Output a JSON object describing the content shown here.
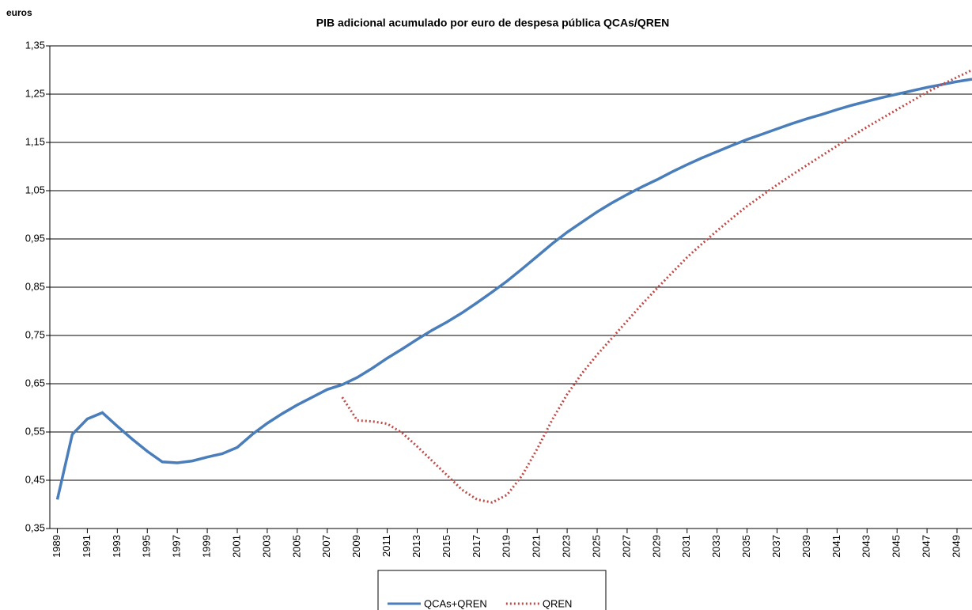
{
  "chart_data": {
    "type": "line",
    "title": "PIB adicional acumulado por euro de despesa pública QCAs/QREN",
    "ylabel": "euros",
    "x": [
      1989,
      1990,
      1991,
      1992,
      1993,
      1994,
      1995,
      1996,
      1997,
      1998,
      1999,
      2000,
      2001,
      2002,
      2003,
      2004,
      2005,
      2006,
      2007,
      2008,
      2009,
      2010,
      2011,
      2012,
      2013,
      2014,
      2015,
      2016,
      2017,
      2018,
      2019,
      2020,
      2021,
      2022,
      2023,
      2024,
      2025,
      2026,
      2027,
      2028,
      2029,
      2030,
      2031,
      2032,
      2033,
      2034,
      2035,
      2036,
      2037,
      2038,
      2039,
      2040,
      2041,
      2042,
      2043,
      2044,
      2045,
      2046,
      2047,
      2048,
      2049,
      2050
    ],
    "xlim": [
      1988.5,
      2050
    ],
    "xticks": [
      1989,
      1991,
      1993,
      1995,
      1997,
      1999,
      2001,
      2003,
      2005,
      2007,
      2009,
      2011,
      2013,
      2015,
      2017,
      2019,
      2021,
      2023,
      2025,
      2027,
      2029,
      2031,
      2033,
      2035,
      2037,
      2039,
      2041,
      2043,
      2045,
      2047,
      2049
    ],
    "ylim": [
      0.35,
      1.35
    ],
    "yticks": [
      {
        "value": 0.35,
        "label": "0,35"
      },
      {
        "value": 0.45,
        "label": "0,45"
      },
      {
        "value": 0.55,
        "label": "0,55"
      },
      {
        "value": 0.65,
        "label": "0,65"
      },
      {
        "value": 0.75,
        "label": "0,75"
      },
      {
        "value": 0.85,
        "label": "0,85"
      },
      {
        "value": 0.95,
        "label": "0,95"
      },
      {
        "value": 1.05,
        "label": "1,05"
      },
      {
        "value": 1.15,
        "label": "1,15"
      },
      {
        "value": 1.25,
        "label": "1,25"
      },
      {
        "value": 1.35,
        "label": "1,35"
      }
    ],
    "grid": true,
    "legend": "bottom",
    "series": [
      {
        "name": "QCAs+QREN",
        "color": "#4a7ebb",
        "style": "solid",
        "values": [
          0.41,
          0.545,
          0.577,
          0.59,
          0.562,
          0.535,
          0.51,
          0.488,
          0.486,
          0.49,
          0.498,
          0.505,
          0.518,
          0.545,
          0.568,
          0.588,
          0.606,
          0.622,
          0.638,
          0.648,
          0.663,
          0.682,
          0.703,
          0.722,
          0.742,
          0.761,
          0.778,
          0.797,
          0.818,
          0.84,
          0.863,
          0.888,
          0.914,
          0.94,
          0.964,
          0.985,
          1.006,
          1.025,
          1.042,
          1.058,
          1.073,
          1.089,
          1.104,
          1.118,
          1.131,
          1.144,
          1.156,
          1.167,
          1.178,
          1.189,
          1.199,
          1.208,
          1.218,
          1.227,
          1.235,
          1.243,
          1.25,
          1.257,
          1.264,
          1.27,
          1.276,
          1.281
        ]
      },
      {
        "name": "QREN",
        "color": "#be4b48",
        "style": "dotted",
        "values": [
          null,
          null,
          null,
          null,
          null,
          null,
          null,
          null,
          null,
          null,
          null,
          null,
          null,
          null,
          null,
          null,
          null,
          null,
          null,
          0.622,
          0.574,
          0.572,
          0.567,
          0.548,
          0.52,
          0.49,
          0.46,
          0.43,
          0.41,
          0.404,
          0.42,
          0.46,
          0.515,
          0.575,
          0.628,
          0.672,
          0.71,
          0.745,
          0.78,
          0.815,
          0.848,
          0.88,
          0.912,
          0.94,
          0.967,
          0.993,
          1.018,
          1.04,
          1.062,
          1.083,
          1.103,
          1.123,
          1.143,
          1.163,
          1.182,
          1.2,
          1.218,
          1.236,
          1.254,
          1.27,
          1.285,
          1.3
        ]
      }
    ]
  }
}
